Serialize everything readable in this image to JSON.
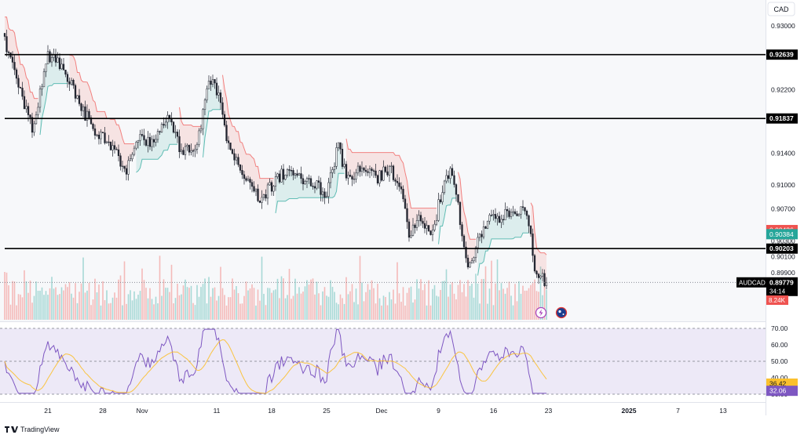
{
  "currency": "CAD",
  "branding": {
    "text": "TradingView",
    "logo_icon": "tradingview-logo-icon"
  },
  "chart_data": {
    "type": "candlestick",
    "symbol": "AUDCAD",
    "price_axis": {
      "range": [
        0.8958,
        0.9312
      ],
      "ticks": [
        {
          "value": 0.93,
          "label": "0.93000"
        },
        {
          "value": 0.922,
          "label": "0.92200"
        },
        {
          "value": 0.914,
          "label": "0.91400"
        },
        {
          "value": 0.91,
          "label": "0.91000"
        },
        {
          "value": 0.907,
          "label": "0.90700"
        },
        {
          "value": 0.903,
          "label": "0.90300"
        },
        {
          "value": 0.901,
          "label": "0.90100"
        },
        {
          "value": 0.899,
          "label": "0.89900"
        }
      ]
    },
    "horizontal_levels": [
      {
        "value": 0.92639,
        "label": "0.92639"
      },
      {
        "value": 0.91837,
        "label": "0.91837"
      },
      {
        "value": 0.90203,
        "label": "0.90203"
      }
    ],
    "price_badges": [
      {
        "value": 0.90436,
        "label": "0.90436",
        "color": "#ef5350"
      },
      {
        "value": 0.90384,
        "label": "0.90384",
        "color": "#26a69a"
      }
    ],
    "current": {
      "symbol": "AUDCAD",
      "price": "0.89779",
      "value": 0.89779,
      "countdown": "34:14"
    },
    "volume_badge": {
      "label": "8.24K",
      "color": "#ef5350"
    },
    "x_axis_labels": [
      "21",
      "28",
      "Nov",
      "11",
      "18",
      "25",
      "Dec",
      "9",
      "16",
      "23",
      "2025",
      "7",
      "13"
    ],
    "price_keypoints": [
      [
        0,
        0.928
      ],
      [
        6,
        0.923
      ],
      [
        14,
        0.917
      ],
      [
        22,
        0.926
      ],
      [
        30,
        0.925
      ],
      [
        38,
        0.92
      ],
      [
        46,
        0.917
      ],
      [
        54,
        0.915
      ],
      [
        62,
        0.912
      ],
      [
        68,
        0.916
      ],
      [
        76,
        0.915
      ],
      [
        84,
        0.919
      ],
      [
        90,
        0.914
      ],
      [
        98,
        0.915
      ],
      [
        104,
        0.923
      ],
      [
        108,
        0.922
      ],
      [
        114,
        0.915
      ],
      [
        122,
        0.911
      ],
      [
        130,
        0.908
      ],
      [
        136,
        0.91
      ],
      [
        144,
        0.912
      ],
      [
        150,
        0.911
      ],
      [
        158,
        0.91
      ],
      [
        164,
        0.909
      ],
      [
        170,
        0.915
      ],
      [
        174,
        0.911
      ],
      [
        182,
        0.912
      ],
      [
        190,
        0.911
      ],
      [
        196,
        0.912
      ],
      [
        202,
        0.91
      ],
      [
        206,
        0.904
      ],
      [
        212,
        0.906
      ],
      [
        218,
        0.904
      ],
      [
        224,
        0.911
      ],
      [
        228,
        0.912
      ],
      [
        232,
        0.9055
      ],
      [
        236,
        0.899
      ],
      [
        240,
        0.902
      ],
      [
        246,
        0.906
      ],
      [
        252,
        0.906
      ],
      [
        258,
        0.907
      ],
      [
        264,
        0.9065
      ],
      [
        268,
        0.9045
      ],
      [
        270,
        0.899
      ],
      [
        273,
        0.8983
      ],
      [
        276,
        0.8978
      ]
    ],
    "rsi": {
      "axis_ticks": [
        {
          "value": 70,
          "label": "70.00"
        },
        {
          "value": 60,
          "label": "60.00"
        },
        {
          "value": 50,
          "label": "50.00"
        },
        {
          "value": 40,
          "label": "40.00"
        },
        {
          "value": 30,
          "label": "30.00"
        }
      ],
      "rsi_badge": {
        "value": 36.42,
        "label": "36.42",
        "color": "#fbc02d"
      },
      "ma_badge": {
        "value": 32.06,
        "label": "32.06",
        "color": "#7e57c2"
      }
    }
  }
}
